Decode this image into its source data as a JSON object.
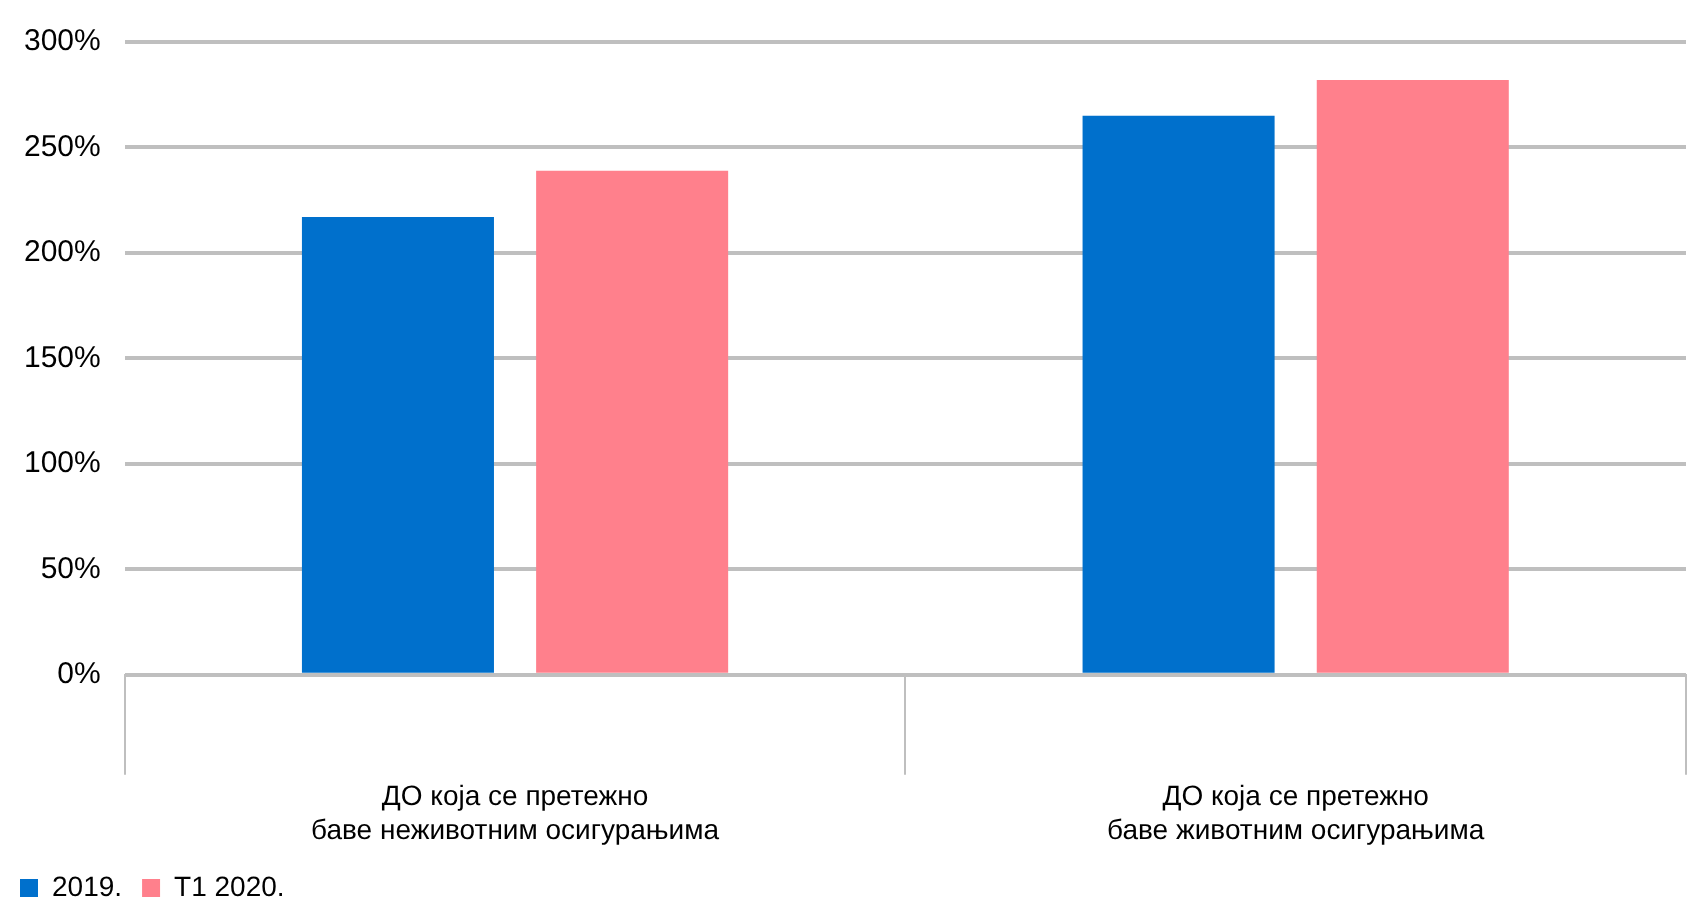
{
  "chart_data": {
    "type": "bar",
    "categories": [
      "ДО која се претежно баве неживотним осигурањима",
      "ДО која се претежно баве животним осигурањима"
    ],
    "series": [
      {
        "name": "2019.",
        "color": "#0070cc",
        "values": [
          217,
          265
        ]
      },
      {
        "name": "Т1 2020.",
        "color": "#ff808c",
        "values": [
          239,
          282
        ]
      }
    ],
    "ylim": [
      0,
      300
    ],
    "yticks": [
      {
        "value": 0,
        "label": "0%"
      },
      {
        "value": 50,
        "label": "50%"
      },
      {
        "value": 100,
        "label": "100%"
      },
      {
        "value": 150,
        "label": "150%"
      },
      {
        "value": 200,
        "label": "200%"
      },
      {
        "value": 250,
        "label": "250%"
      },
      {
        "value": 300,
        "label": "300%"
      }
    ],
    "grid": "y",
    "legend": "bottom left"
  }
}
